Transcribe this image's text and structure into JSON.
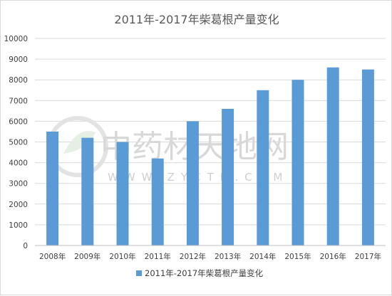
{
  "chart_data": {
    "type": "bar",
    "title": "2011年-2017年柴葛根产量变化",
    "xlabel": "",
    "ylabel": "",
    "categories": [
      "2008年",
      "2009年",
      "2010年",
      "2011年",
      "2012年",
      "2013年",
      "2014年",
      "2015年",
      "2016年",
      "2017年"
    ],
    "series": [
      {
        "name": "2011年-2017年柴葛根产量变化",
        "values": [
          5500,
          5200,
          5000,
          4200,
          6000,
          6600,
          7500,
          8000,
          8600,
          8500
        ]
      }
    ],
    "ylim": [
      0,
      10000
    ],
    "yticks": [
      0,
      1000,
      2000,
      3000,
      4000,
      5000,
      6000,
      7000,
      8000,
      9000,
      10000
    ],
    "grid": true,
    "legend_position": "bottom",
    "bar_color": "#5b9bd5"
  },
  "watermark": {
    "brand_cn": "中药材天地网",
    "url": "WWW.ZYCTD.COM"
  }
}
